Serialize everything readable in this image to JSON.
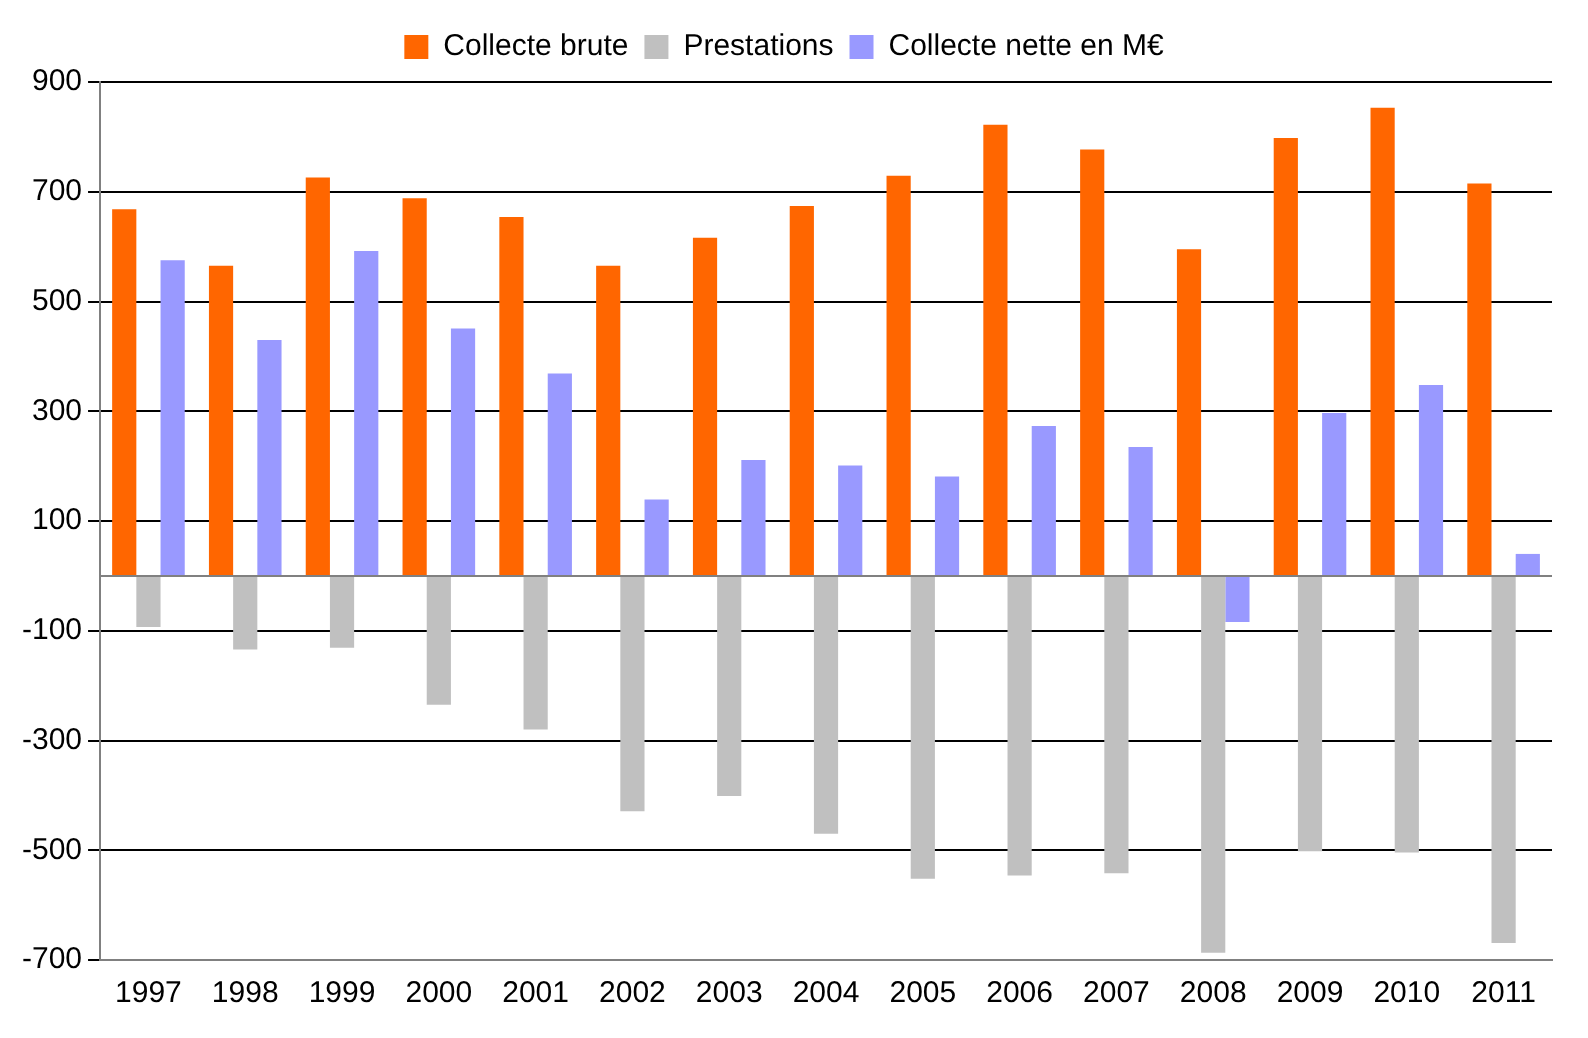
{
  "chart_data": {
    "type": "bar",
    "categories": [
      "1997",
      "1998",
      "1999",
      "2000",
      "2001",
      "2002",
      "2003",
      "2004",
      "2005",
      "2006",
      "2007",
      "2008",
      "2009",
      "2010",
      "2011"
    ],
    "series": [
      {
        "name": "Collecte brute",
        "color": "#ff6600",
        "values": [
          668,
          565,
          726,
          688,
          654,
          565,
          616,
          674,
          729,
          822,
          777,
          595,
          798,
          853,
          715
        ]
      },
      {
        "name": "Prestations",
        "color": "#c0c0c0",
        "values": [
          -93,
          -134,
          -131,
          -235,
          -280,
          -429,
          -401,
          -470,
          -552,
          -546,
          -542,
          -687,
          -502,
          -504,
          -669
        ]
      },
      {
        "name": "Collecte nette en M€",
        "color": "#9999ff",
        "values": [
          575,
          430,
          592,
          451,
          369,
          139,
          211,
          201,
          181,
          273,
          235,
          -84,
          297,
          348,
          40
        ]
      }
    ],
    "ylim": [
      -700,
      900
    ],
    "yticks": [
      -700,
      -500,
      -300,
      -100,
      100,
      300,
      500,
      700,
      900
    ],
    "grid": "y",
    "legend": "top"
  }
}
